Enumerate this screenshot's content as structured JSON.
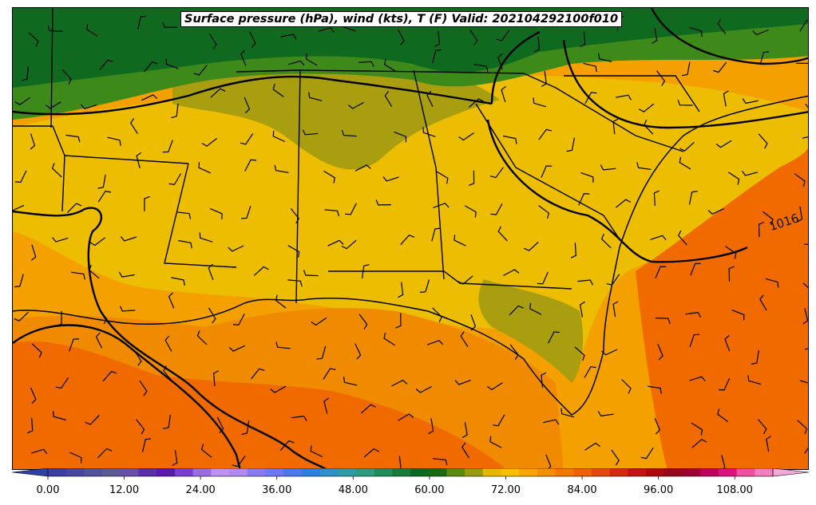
{
  "title": "Surface pressure (hPa), wind (kts), T (F) Valid: 202104292100f010",
  "isobar_label": "1016",
  "colorbar": {
    "min": 0,
    "max": 114,
    "step": 3,
    "tick_labels": [
      "0.00",
      "12.00",
      "24.00",
      "36.00",
      "48.00",
      "60.00",
      "72.00",
      "84.00",
      "96.00",
      "108.00"
    ],
    "tick_values": [
      0,
      12,
      24,
      36,
      48,
      60,
      72,
      84,
      96,
      108
    ],
    "colors": [
      "#3b3fa3",
      "#46489e",
      "#52529a",
      "#5e5c98",
      "#6a4fa8",
      "#5a2ea8",
      "#5a1ab0",
      "#7a3fd0",
      "#9a6ee0",
      "#c090f0",
      "#b08cf0",
      "#8a7af0",
      "#6e78f2",
      "#4a78f0",
      "#2f7fe0",
      "#2f8fc8",
      "#2f9aa8",
      "#2e9a80",
      "#1f8c5a",
      "#177a38",
      "#0f6a20",
      "#1a6a10",
      "#5a8a10",
      "#9a9a10",
      "#e8b800",
      "#f4c000",
      "#f4a800",
      "#f49000",
      "#f47800",
      "#f46000",
      "#e84810",
      "#d82810",
      "#c81010",
      "#b00808",
      "#980818",
      "#a00030",
      "#c00060",
      "#e01080",
      "#f050a0",
      "#f080c0"
    ],
    "under_color": "#3040a0",
    "over_color": "#f8a8d8"
  },
  "legend_units": "T (F)"
}
